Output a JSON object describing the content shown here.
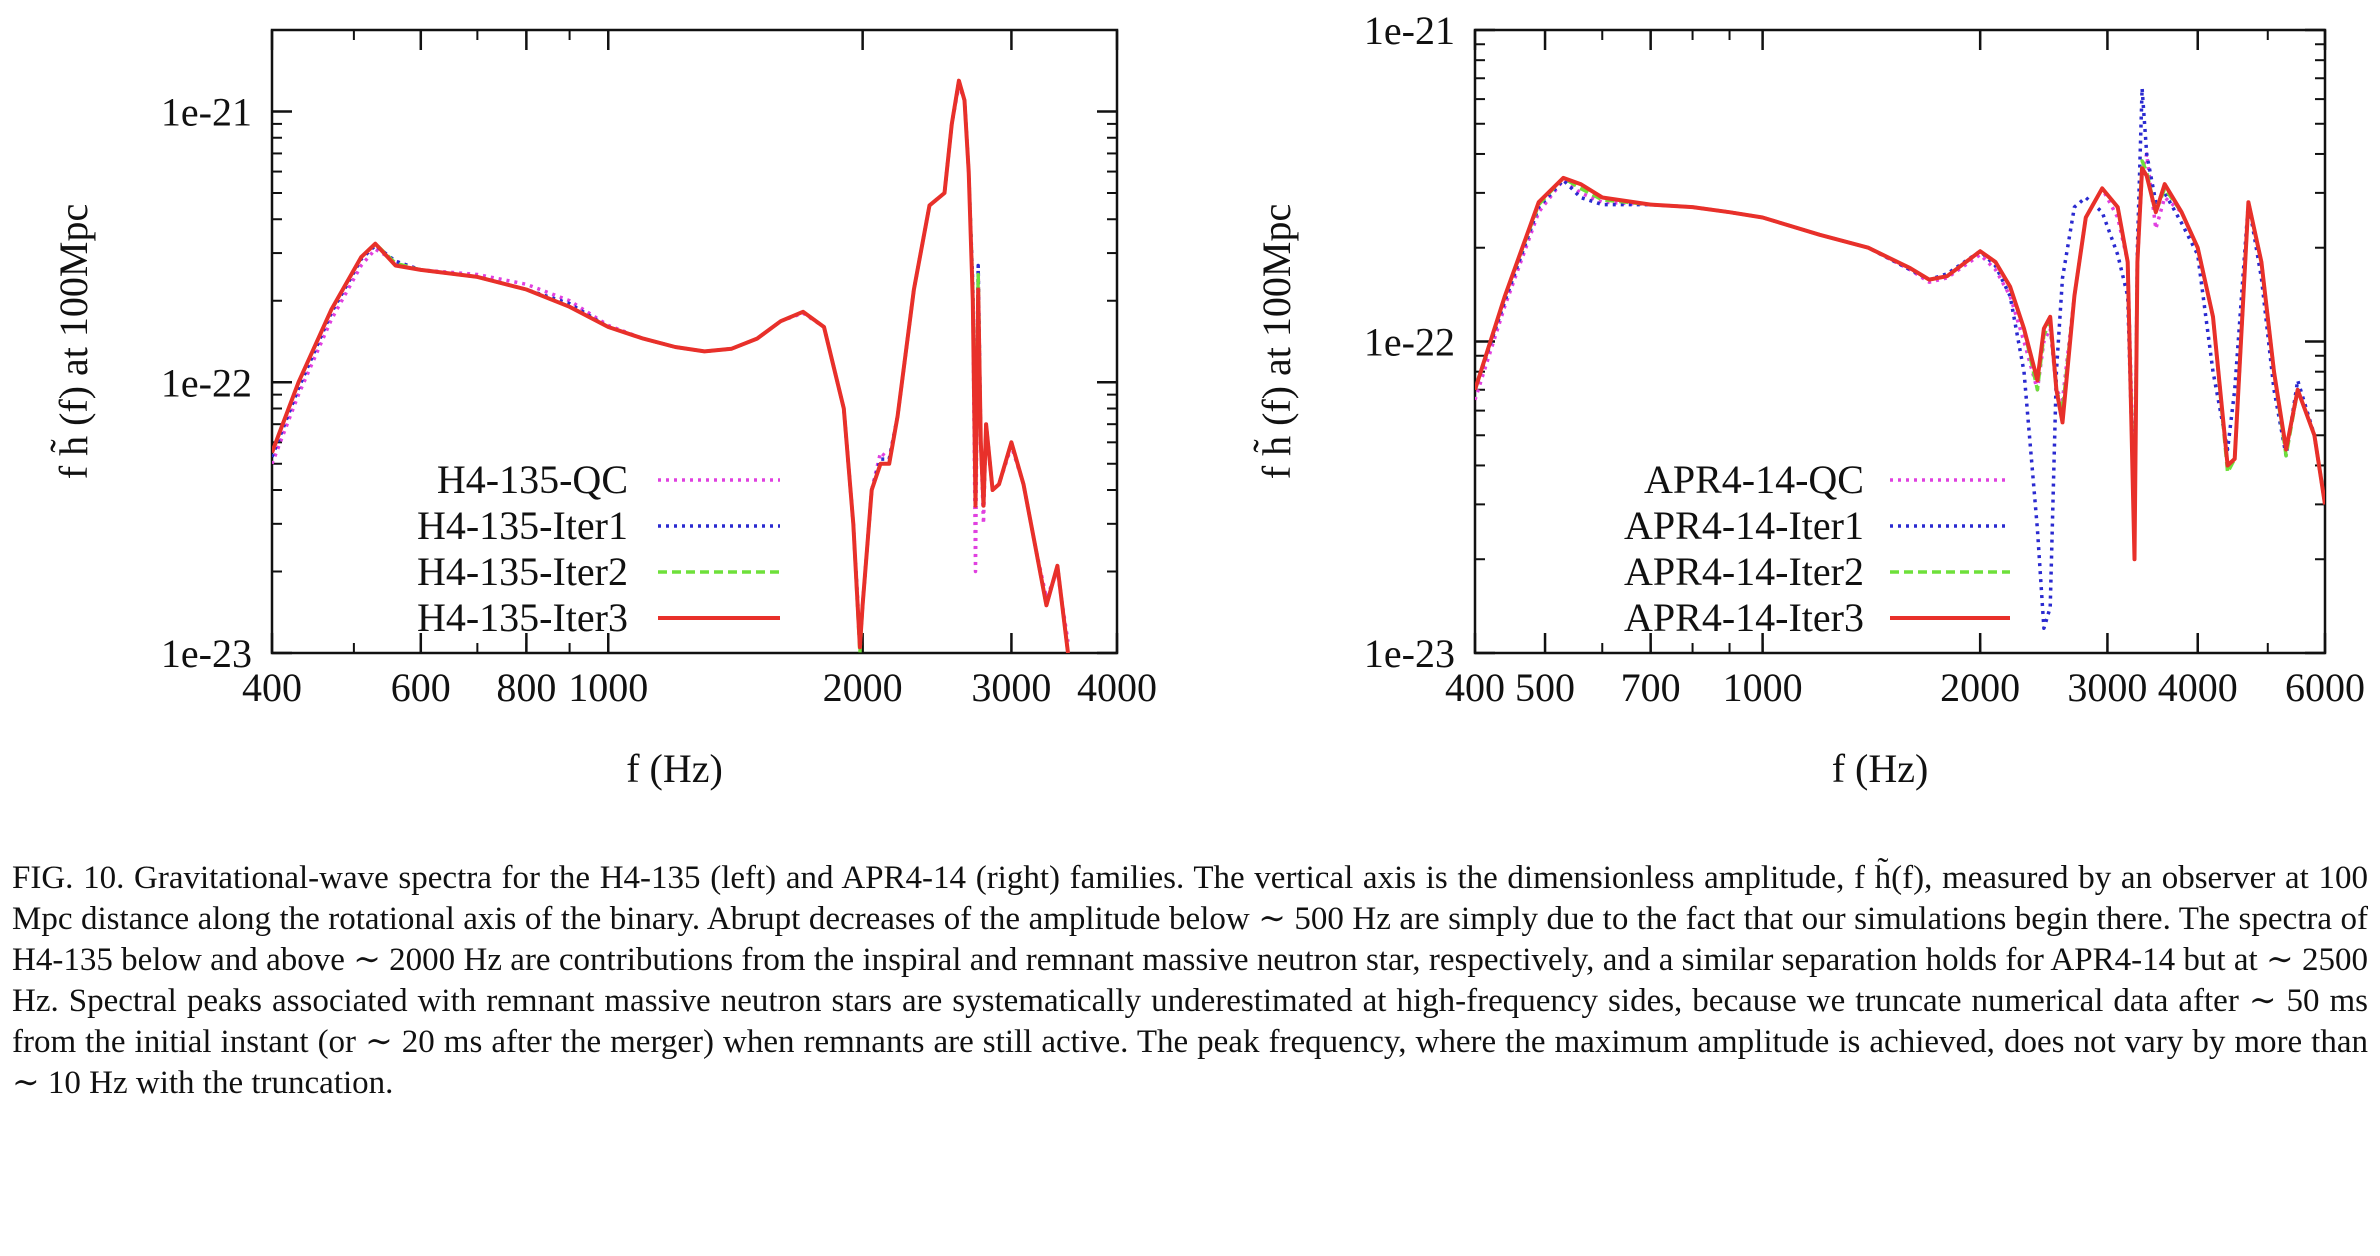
{
  "figure": {
    "caption": "FIG. 10. Gravitational-wave spectra for the H4-135 (left) and APR4-14 (right) families. The vertical axis is the dimensionless amplitude, f h̃(f), measured by an observer at 100 Mpc distance along the rotational axis of the binary. Abrupt decreases of the amplitude below ∼ 500 Hz are simply due to the fact that our simulations begin there. The spectra of H4-135 below and above ∼ 2000 Hz are contributions from the inspiral and remnant massive neutron star, respectively, and a similar separation holds for APR4-14 but at ∼ 2500 Hz. Spectral peaks associated with remnant massive neutron stars are systematically underestimated at high-frequency sides, because we truncate numerical data after ∼ 50 ms from the initial instant (or ∼ 20 ms after the merger) when remnants are still active. The peak frequency, where the maximum amplitude is achieved, does not vary by more than ∼ 10 Hz with the truncation."
  },
  "colors": {
    "QC": "#e040e0",
    "Iter1": "#2a2ad0",
    "Iter2": "#6ee03a",
    "Iter3": "#e8302a"
  },
  "chart_data": [
    {
      "type": "line",
      "x_scale": "log",
      "y_scale": "log",
      "xlim": [
        400,
        4000
      ],
      "ylim": [
        1e-23,
        2e-21
      ],
      "xlabel": "f (Hz)",
      "ylabel": "f h̃ (f) at 100Mpc",
      "x_ticks": [
        {
          "value": 400,
          "label": "400"
        },
        {
          "value": 600,
          "label": "600"
        },
        {
          "value": 800,
          "label": "800"
        },
        {
          "value": 1000,
          "label": "1000"
        },
        {
          "value": 2000,
          "label": "2000"
        },
        {
          "value": 3000,
          "label": "3000"
        },
        {
          "value": 4000,
          "label": "4000"
        }
      ],
      "y_ticks": [
        {
          "value": 1e-23,
          "label": "1e-23"
        },
        {
          "value": 1e-22,
          "label": "1e-22"
        },
        {
          "value": 1e-21,
          "label": "1e-21"
        }
      ],
      "legend_position": "bottom-left",
      "series": [
        {
          "name": "H4-135-QC",
          "key": "QC",
          "style": "dotted",
          "x": [
            400,
            430,
            470,
            510,
            530,
            560,
            600,
            700,
            800,
            900,
            1000,
            1100,
            1200,
            1300,
            1400,
            1500,
            1600,
            1700,
            1800,
            1900,
            1950,
            1985,
            2000,
            2050,
            2100,
            2150,
            2200,
            2300,
            2400,
            2500,
            2550,
            2600,
            2640,
            2670,
            2700,
            2720,
            2740,
            2760,
            2780,
            2800,
            2850,
            2900,
            3000,
            3100,
            3200,
            3300,
            3400,
            3500
          ],
          "y": [
            5e-23,
            9e-23,
            1.7e-22,
            2.7e-22,
            3.1e-22,
            2.8e-22,
            2.6e-22,
            2.5e-22,
            2.3e-22,
            2e-22,
            1.62e-22,
            1.45e-22,
            1.35e-22,
            1.3e-22,
            1.33e-22,
            1.45e-22,
            1.68e-22,
            1.8e-22,
            1.6e-22,
            8e-23,
            3e-23,
            1.1e-23,
            1.5e-23,
            4e-23,
            5.5e-23,
            5.2e-23,
            7.5e-23,
            2.2e-22,
            4.5e-22,
            5e-22,
            9e-22,
            1.25e-21,
            1.1e-21,
            6e-22,
            2.1e-22,
            2e-23,
            2.6e-22,
            6e-23,
            3e-23,
            7e-23,
            4e-23,
            4.2e-23,
            5.8e-23,
            4.2e-23,
            2.5e-23,
            1.6e-23,
            2e-23,
            1.1e-23
          ]
        },
        {
          "name": "H4-135-Iter1",
          "key": "Iter1",
          "style": "dotted",
          "x": [
            400,
            430,
            470,
            510,
            530,
            560,
            600,
            700,
            800,
            900,
            1000,
            1100,
            1200,
            1300,
            1400,
            1500,
            1600,
            1700,
            1800,
            1900,
            1950,
            1985,
            2000,
            2050,
            2100,
            2150,
            2200,
            2300,
            2400,
            2500,
            2550,
            2600,
            2640,
            2670,
            2700,
            2720,
            2740,
            2760,
            2780,
            2800,
            2850,
            2900,
            3000,
            3100,
            3200,
            3300,
            3400,
            3500
          ],
          "y": [
            5.3e-23,
            9.5e-23,
            1.8e-22,
            2.85e-22,
            3.2e-22,
            2.8e-22,
            2.6e-22,
            2.45e-22,
            2.2e-22,
            1.95e-22,
            1.6e-22,
            1.45e-22,
            1.35e-22,
            1.3e-22,
            1.33e-22,
            1.45e-22,
            1.68e-22,
            1.82e-22,
            1.6e-22,
            8e-23,
            3e-23,
            1.1e-23,
            1.5e-23,
            4e-23,
            5.2e-23,
            5.2e-23,
            7.5e-23,
            2.2e-22,
            4.5e-22,
            5e-22,
            9e-22,
            1.3e-21,
            1.1e-21,
            6e-22,
            2.3e-22,
            4e-23,
            2.7e-22,
            6e-23,
            3.5e-23,
            7e-23,
            4e-23,
            4.2e-23,
            6e-23,
            4.2e-23,
            2.5e-23,
            1.5e-23,
            2.1e-23,
            1e-23
          ]
        },
        {
          "name": "H4-135-Iter2",
          "key": "Iter2",
          "style": "dashed",
          "x": [
            400,
            430,
            470,
            510,
            530,
            560,
            600,
            700,
            800,
            900,
            1000,
            1100,
            1200,
            1300,
            1400,
            1500,
            1600,
            1700,
            1800,
            1900,
            1950,
            1985,
            2000,
            2050,
            2100,
            2150,
            2200,
            2300,
            2400,
            2500,
            2550,
            2600,
            2640,
            2670,
            2700,
            2720,
            2740,
            2760,
            2780,
            2800,
            2850,
            2900,
            3000,
            3100,
            3200,
            3300,
            3400,
            3500
          ],
          "y": [
            5.5e-23,
            1e-22,
            1.85e-22,
            2.9e-22,
            3.25e-22,
            2.75e-22,
            2.6e-22,
            2.45e-22,
            2.2e-22,
            1.9e-22,
            1.6e-22,
            1.45e-22,
            1.35e-22,
            1.3e-22,
            1.33e-22,
            1.45e-22,
            1.68e-22,
            1.82e-22,
            1.6e-22,
            8e-23,
            3e-23,
            1e-23,
            1.5e-23,
            4e-23,
            5e-23,
            5e-23,
            7.5e-23,
            2.2e-22,
            4.5e-22,
            5e-22,
            9e-22,
            1.3e-21,
            1.1e-21,
            6e-22,
            2.2e-22,
            4e-23,
            2.5e-22,
            6e-23,
            3.5e-23,
            7e-23,
            4e-23,
            4.2e-23,
            6e-23,
            4.2e-23,
            2.5e-23,
            1.5e-23,
            2.1e-23,
            1e-23
          ]
        },
        {
          "name": "H4-135-Iter3",
          "key": "Iter3",
          "style": "solid",
          "x": [
            400,
            430,
            470,
            510,
            530,
            560,
            600,
            700,
            800,
            900,
            1000,
            1100,
            1200,
            1300,
            1400,
            1500,
            1600,
            1700,
            1800,
            1900,
            1950,
            1985,
            2000,
            2050,
            2100,
            2150,
            2200,
            2300,
            2400,
            2500,
            2550,
            2600,
            2640,
            2670,
            2700,
            2720,
            2740,
            2760,
            2780,
            2800,
            2850,
            2900,
            3000,
            3100,
            3200,
            3300,
            3400,
            3500
          ],
          "y": [
            5.5e-23,
            1e-22,
            1.85e-22,
            2.9e-22,
            3.25e-22,
            2.7e-22,
            2.6e-22,
            2.45e-22,
            2.2e-22,
            1.9e-22,
            1.6e-22,
            1.45e-22,
            1.35e-22,
            1.3e-22,
            1.33e-22,
            1.45e-22,
            1.68e-22,
            1.82e-22,
            1.6e-22,
            8e-23,
            3e-23,
            1.05e-23,
            1.5e-23,
            4e-23,
            5e-23,
            5e-23,
            7.5e-23,
            2.2e-22,
            4.5e-22,
            5e-22,
            9e-22,
            1.3e-21,
            1.1e-21,
            6e-22,
            2e-22,
            3.5e-23,
            2.2e-22,
            6e-23,
            3.5e-23,
            7e-23,
            4e-23,
            4.2e-23,
            6e-23,
            4.2e-23,
            2.5e-23,
            1.5e-23,
            2.1e-23,
            1e-23
          ]
        }
      ]
    },
    {
      "type": "line",
      "x_scale": "log",
      "y_scale": "log",
      "xlim": [
        400,
        6000
      ],
      "ylim": [
        1e-23,
        1e-21
      ],
      "xlabel": "f (Hz)",
      "ylabel": "f h̃ (f) at 100Mpc",
      "x_ticks": [
        {
          "value": 400,
          "label": "400"
        },
        {
          "value": 500,
          "label": "500"
        },
        {
          "value": 700,
          "label": "700"
        },
        {
          "value": 1000,
          "label": "1000"
        },
        {
          "value": 2000,
          "label": "2000"
        },
        {
          "value": 3000,
          "label": "3000"
        },
        {
          "value": 4000,
          "label": "4000"
        },
        {
          "value": 6000,
          "label": "6000"
        }
      ],
      "y_ticks": [
        {
          "value": 1e-23,
          "label": "1e-23"
        },
        {
          "value": 1e-22,
          "label": "1e-22"
        },
        {
          "value": 1e-21,
          "label": "1e-21"
        }
      ],
      "legend_position": "bottom-left",
      "series": [
        {
          "name": "APR4-14-QC",
          "key": "QC",
          "style": "dotted",
          "x": [
            400,
            440,
            490,
            530,
            560,
            600,
            700,
            800,
            900,
            1000,
            1200,
            1400,
            1600,
            1700,
            1800,
            2000,
            2100,
            2200,
            2300,
            2400,
            2450,
            2500,
            2550,
            2600,
            2700,
            2800,
            2950,
            3100,
            3200,
            3270,
            3300,
            3350,
            3400,
            3500,
            3600,
            3800,
            4000,
            4200,
            4400,
            4500,
            4700,
            4900,
            5100,
            5300,
            5500,
            5800,
            6000
          ],
          "y": [
            6.5e-23,
            1.3e-22,
            2.6e-22,
            3.3e-22,
            3e-22,
            2.8e-22,
            2.75e-22,
            2.7e-22,
            2.6e-22,
            2.5e-22,
            2.2e-22,
            2e-22,
            1.7e-22,
            1.55e-22,
            1.6e-22,
            1.9e-22,
            1.7e-22,
            1.4e-22,
            1e-22,
            7e-23,
            1e-22,
            1.1e-22,
            7e-23,
            6.5e-23,
            1.4e-22,
            2.5e-22,
            3.1e-22,
            2.5e-22,
            1.8e-22,
            3e-23,
            1.8e-22,
            3.5e-22,
            4e-22,
            2.3e-22,
            2.9e-22,
            2.6e-22,
            2e-22,
            1.2e-22,
            4e-23,
            4.2e-23,
            2.8e-22,
            1.8e-22,
            8e-23,
            4.5e-23,
            7e-23,
            5e-23,
            3e-23
          ]
        },
        {
          "name": "APR4-14-Iter1",
          "key": "Iter1",
          "style": "dotted",
          "x": [
            400,
            440,
            490,
            530,
            560,
            600,
            700,
            800,
            900,
            1000,
            1200,
            1400,
            1600,
            1700,
            1800,
            2000,
            2100,
            2200,
            2300,
            2400,
            2450,
            2500,
            2550,
            2600,
            2700,
            2800,
            2950,
            3100,
            3200,
            3270,
            3300,
            3350,
            3400,
            3500,
            3600,
            3800,
            4000,
            4200,
            4400,
            4500,
            4700,
            4900,
            5100,
            5300,
            5500,
            5800,
            6000
          ],
          "y": [
            7e-23,
            1.35e-22,
            2.7e-22,
            3.3e-22,
            2.9e-22,
            2.75e-22,
            2.75e-22,
            2.7e-22,
            2.6e-22,
            2.5e-22,
            2.2e-22,
            2e-22,
            1.7e-22,
            1.58e-22,
            1.65e-22,
            1.95e-22,
            1.75e-22,
            1.4e-22,
            8e-23,
            2.5e-23,
            1.2e-23,
            1.4e-23,
            8e-23,
            1.6e-22,
            2.7e-22,
            2.9e-22,
            2.6e-22,
            1.9e-22,
            1.4e-22,
            2.5e-23,
            2e-22,
            6.5e-22,
            4e-22,
            2.8e-22,
            3e-22,
            2.4e-22,
            1.9e-22,
            8e-23,
            4.5e-23,
            7e-23,
            2.8e-22,
            1.6e-22,
            7e-23,
            4.3e-23,
            7.5e-23,
            5e-23,
            3e-23
          ]
        },
        {
          "name": "APR4-14-Iter2",
          "key": "Iter2",
          "style": "dashed",
          "x": [
            400,
            440,
            490,
            530,
            560,
            600,
            700,
            800,
            900,
            1000,
            1200,
            1400,
            1600,
            1700,
            1800,
            2000,
            2100,
            2200,
            2300,
            2400,
            2450,
            2500,
            2550,
            2600,
            2700,
            2800,
            2950,
            3100,
            3200,
            3270,
            3300,
            3350,
            3400,
            3500,
            3600,
            3800,
            4000,
            4200,
            4400,
            4500,
            4700,
            4900,
            5100,
            5300,
            5500,
            5800,
            6000
          ],
          "y": [
            7e-23,
            1.4e-22,
            2.75e-22,
            3.35e-22,
            3.1e-22,
            2.85e-22,
            2.75e-22,
            2.7e-22,
            2.6e-22,
            2.5e-22,
            2.2e-22,
            2e-22,
            1.72e-22,
            1.58e-22,
            1.62e-22,
            1.95e-22,
            1.8e-22,
            1.5e-22,
            1.1e-22,
            7e-23,
            1.05e-22,
            1.15e-22,
            7e-23,
            6e-23,
            1.4e-22,
            2.5e-22,
            3.1e-22,
            2.7e-22,
            1.8e-22,
            2.5e-23,
            1.8e-22,
            3.8e-22,
            3.5e-22,
            2.6e-22,
            3.1e-22,
            2.6e-22,
            2e-22,
            1.2e-22,
            3.8e-23,
            4.2e-23,
            2.8e-22,
            1.8e-22,
            8e-23,
            4.3e-23,
            7e-23,
            5e-23,
            3e-23
          ]
        },
        {
          "name": "APR4-14-Iter3",
          "key": "Iter3",
          "style": "solid",
          "x": [
            400,
            440,
            490,
            530,
            560,
            600,
            700,
            800,
            900,
            1000,
            1200,
            1400,
            1600,
            1700,
            1800,
            2000,
            2100,
            2200,
            2300,
            2400,
            2450,
            2500,
            2550,
            2600,
            2700,
            2800,
            2950,
            3100,
            3200,
            3270,
            3300,
            3350,
            3400,
            3500,
            3600,
            3800,
            4000,
            4200,
            4400,
            4500,
            4700,
            4900,
            5100,
            5300,
            5500,
            5800,
            6000
          ],
          "y": [
            7e-23,
            1.4e-22,
            2.8e-22,
            3.35e-22,
            3.2e-22,
            2.9e-22,
            2.75e-22,
            2.7e-22,
            2.6e-22,
            2.5e-22,
            2.2e-22,
            2e-22,
            1.72e-22,
            1.58e-22,
            1.62e-22,
            1.95e-22,
            1.8e-22,
            1.5e-22,
            1.1e-22,
            7.5e-23,
            1.1e-22,
            1.2e-22,
            7e-23,
            5.5e-23,
            1.4e-22,
            2.5e-22,
            3.1e-22,
            2.7e-22,
            1.8e-22,
            2e-23,
            1.8e-22,
            3.6e-22,
            3.4e-22,
            2.6e-22,
            3.2e-22,
            2.6e-22,
            2e-22,
            1.2e-22,
            4e-23,
            4.2e-23,
            2.8e-22,
            1.8e-22,
            8e-23,
            4.5e-23,
            7e-23,
            5e-23,
            3e-23
          ]
        }
      ]
    }
  ]
}
